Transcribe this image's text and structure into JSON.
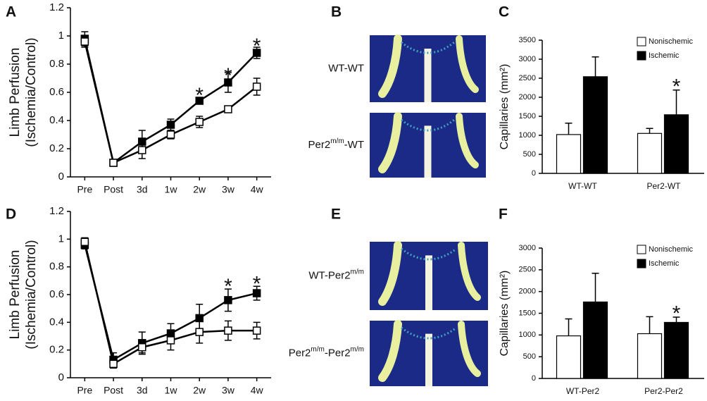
{
  "chart_data": [
    {
      "type": "line",
      "panel_label": "A",
      "ylabel": [
        "Limb Perfusion",
        "(Ischemia/Control)"
      ],
      "categories": [
        "Pre",
        "Post",
        "3d",
        "1w",
        "2w",
        "3w",
        "4w"
      ],
      "ylim": [
        0,
        1.2
      ],
      "yticks": [
        0,
        0.2,
        0.4,
        0.6,
        0.8,
        1,
        1.2
      ],
      "series": [
        {
          "color": "#000000",
          "values": [
            0.98,
            0.1,
            0.25,
            0.37,
            0.54,
            0.67,
            0.88
          ],
          "errors": [
            0.05,
            0.02,
            0.08,
            0.04,
            0.02,
            0.07,
            0.04
          ]
        },
        {
          "color": "#ffffff",
          "values": [
            0.96,
            0.1,
            0.19,
            0.3,
            0.39,
            0.48,
            0.64
          ],
          "errors": [
            0.04,
            0.02,
            0.06,
            0.03,
            0.04,
            0.02,
            0.06
          ]
        }
      ],
      "annotations": [
        {
          "text": "*",
          "x": "2w",
          "y": 0.6
        },
        {
          "text": "*",
          "x": "3w",
          "y": 0.74
        },
        {
          "text": "*",
          "x": "4w",
          "y": 0.95
        }
      ]
    },
    {
      "type": "bar",
      "panel_label": "C",
      "ylabel": [
        "Capillaries (mm²)"
      ],
      "categories": [
        "WT-WT",
        "Per2-WT"
      ],
      "ylim": [
        0,
        3500
      ],
      "yticks": [
        0,
        500,
        1000,
        1500,
        2000,
        2500,
        3000,
        3500
      ],
      "legend": "top-right",
      "series": [
        {
          "name": "Nonischemic",
          "color": "#ffffff",
          "values": [
            1020,
            1050
          ],
          "errors": [
            300,
            130
          ]
        },
        {
          "name": "Ischemic",
          "color": "#000000",
          "values": [
            2540,
            1540
          ],
          "errors": [
            520,
            650
          ]
        }
      ],
      "annotations": [
        {
          "text": "*",
          "x": "Per2-WT",
          "series": 1,
          "y": 2400
        }
      ]
    },
    {
      "type": "line",
      "panel_label": "D",
      "ylabel": [
        "Limb Perfusion",
        "(Ischemia/Control)"
      ],
      "categories": [
        "Pre",
        "Post",
        "3d",
        "1w",
        "2w",
        "3w",
        "4w"
      ],
      "ylim": [
        0,
        1.2
      ],
      "yticks": [
        0,
        0.2,
        0.4,
        0.6,
        0.8,
        1,
        1.2
      ],
      "series": [
        {
          "color": "#000000",
          "values": [
            0.96,
            0.13,
            0.25,
            0.32,
            0.43,
            0.56,
            0.61
          ],
          "errors": [
            0.03,
            0.05,
            0.08,
            0.07,
            0.1,
            0.08,
            0.05
          ]
        },
        {
          "color": "#ffffff",
          "values": [
            0.98,
            0.1,
            0.22,
            0.27,
            0.33,
            0.34,
            0.34
          ],
          "errors": [
            0.03,
            0.03,
            0.04,
            0.07,
            0.08,
            0.07,
            0.06
          ]
        }
      ],
      "annotations": [
        {
          "text": "*",
          "x": "3w",
          "y": 0.68
        },
        {
          "text": "*",
          "x": "4w",
          "y": 0.7
        }
      ]
    },
    {
      "type": "bar",
      "panel_label": "F",
      "ylabel": [
        "Capillaries (mm²)"
      ],
      "categories": [
        "WT-Per2",
        "Per2-Per2"
      ],
      "ylim": [
        0,
        3000
      ],
      "yticks": [
        0,
        500,
        1000,
        1500,
        2000,
        2500,
        3000
      ],
      "legend": "top-right",
      "series": [
        {
          "name": "Nonischemic",
          "color": "#ffffff",
          "values": [
            980,
            1030
          ],
          "errors": [
            390,
            390
          ]
        },
        {
          "name": "Ischemic",
          "color": "#000000",
          "values": [
            1760,
            1290
          ],
          "errors": [
            660,
            120
          ]
        }
      ],
      "annotations": [
        {
          "text": "*",
          "x": "Per2-Per2",
          "series": 1,
          "y": 1600
        }
      ]
    }
  ],
  "image_panels": [
    {
      "panel_label": "B",
      "images": [
        {
          "label": [
            {
              "text": "WT-WT"
            }
          ]
        },
        {
          "label": [
            {
              "text": "Per2"
            },
            {
              "text": "m/m",
              "sup": true
            },
            {
              "text": "-WT"
            }
          ]
        }
      ]
    },
    {
      "panel_label": "E",
      "images": [
        {
          "label": [
            {
              "text": "WT-Per2"
            },
            {
              "text": "m/m",
              "sup": true
            }
          ]
        },
        {
          "label": [
            {
              "text": "Per2"
            },
            {
              "text": "m/m",
              "sup": true
            },
            {
              "text": "-Per2"
            },
            {
              "text": "m/m",
              "sup": true
            }
          ]
        }
      ]
    }
  ]
}
